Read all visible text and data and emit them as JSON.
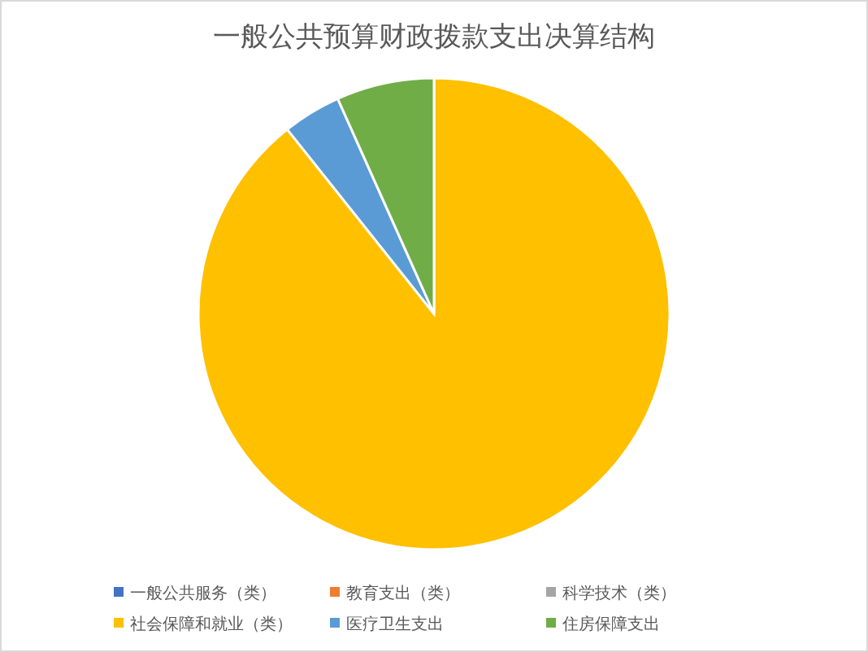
{
  "chart_data": {
    "type": "pie",
    "title": "一般公共预算财政拨款支出决算结构",
    "categories": [
      "一般公共服务（类）",
      "教育支出（类）",
      "科学技术（类）",
      "社会保障和就业（类）",
      "医疗卫生支出",
      "住房保障支出"
    ],
    "values": [
      0,
      0,
      0,
      89.3,
      4.0,
      6.7
    ],
    "colors": [
      "#4472c4",
      "#ed7d31",
      "#a5a5a5",
      "#ffc000",
      "#5b9bd5",
      "#70ad47"
    ],
    "legend": "bottom"
  }
}
